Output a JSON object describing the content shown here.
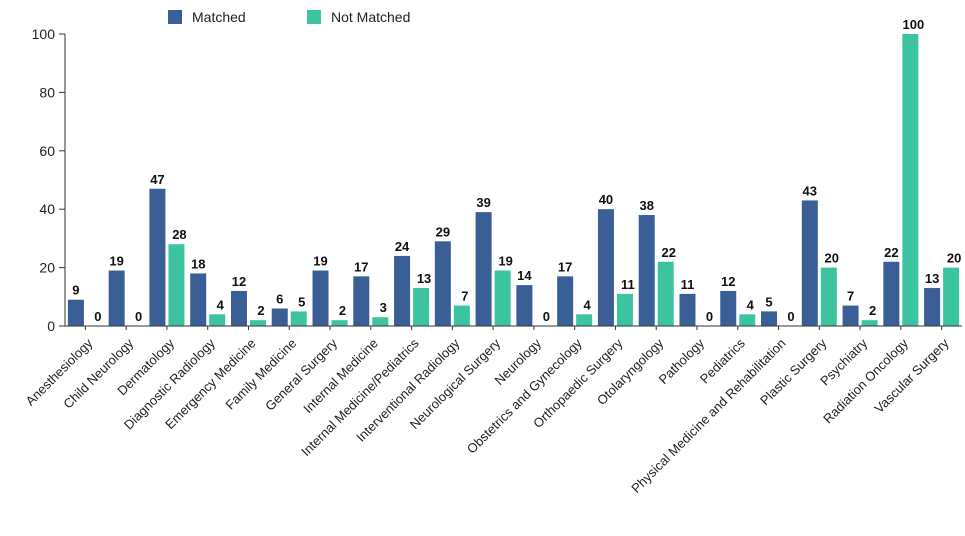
{
  "chart_data": {
    "type": "bar",
    "categories": [
      "Anesthesiology",
      "Child Neurology",
      "Dermatology",
      "Diagnostic Radiology",
      "Emergency Medicine",
      "Family Medicine",
      "General Surgery",
      "Internal Medicine",
      "Internal Medicine/Pediatrics",
      "Interventional Radiology",
      "Neurological Surgery",
      "Neurology",
      "Obstetrics and Gynecology",
      "Orthopaedic Surgery",
      "Otolaryngology",
      "Pathology",
      "Pediatrics",
      "Physical Medicine and Rehabilitation",
      "Plastic Surgery",
      "Psychiatry",
      "Radiation Oncology",
      "Vascular Surgery"
    ],
    "series": [
      {
        "name": "Matched",
        "color": "#3a5f96",
        "values": [
          9,
          19,
          47,
          18,
          12,
          6,
          19,
          17,
          24,
          29,
          39,
          14,
          17,
          40,
          38,
          11,
          12,
          5,
          43,
          7,
          22,
          13
        ]
      },
      {
        "name": "Not Matched",
        "color": "#3cc3a0",
        "values": [
          0,
          0,
          28,
          4,
          2,
          5,
          2,
          3,
          13,
          7,
          19,
          0,
          4,
          11,
          22,
          0,
          4,
          0,
          20,
          2,
          100,
          20
        ]
      }
    ],
    "yticks": [
      0,
      20,
      40,
      60,
      80,
      100
    ],
    "ylim": [
      0,
      100
    ],
    "legend_position": "top-left",
    "grid": false
  }
}
